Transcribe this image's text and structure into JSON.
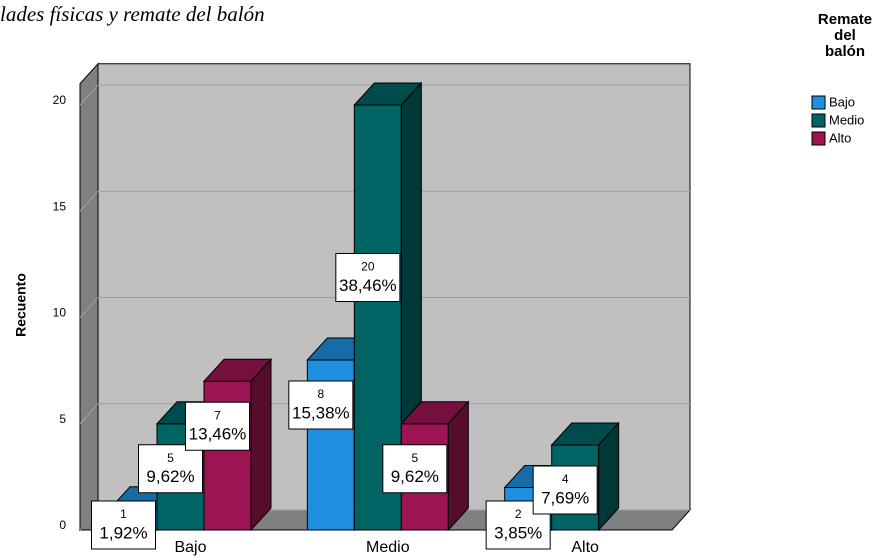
{
  "chart_data": {
    "type": "bar3d",
    "title": "lades físicas y remate del balón",
    "y_label": "Recuento",
    "legend_title": [
      "Remate",
      "del",
      "balón"
    ],
    "categories": [
      "Bajo",
      "Medio",
      "Alto"
    ],
    "series": [
      {
        "name": "Bajo",
        "color": "#1f90e0",
        "values": [
          1,
          8,
          2
        ],
        "percent_labels": [
          "1,92%",
          "15,38%",
          "3,85%"
        ]
      },
      {
        "name": "Medio",
        "color": "#006464",
        "values": [
          5,
          20,
          4
        ],
        "percent_labels": [
          "9,62%",
          "38,46%",
          "7,69%"
        ]
      },
      {
        "name": "Alto",
        "color": "#9c1552",
        "values": [
          7,
          5,
          null
        ],
        "percent_labels": [
          "13,46%",
          "9,62%",
          null
        ]
      }
    ],
    "ylim": [
      0,
      21
    ],
    "yticks": [
      0,
      5,
      10,
      15,
      20
    ],
    "grid": true,
    "legend": "right"
  }
}
